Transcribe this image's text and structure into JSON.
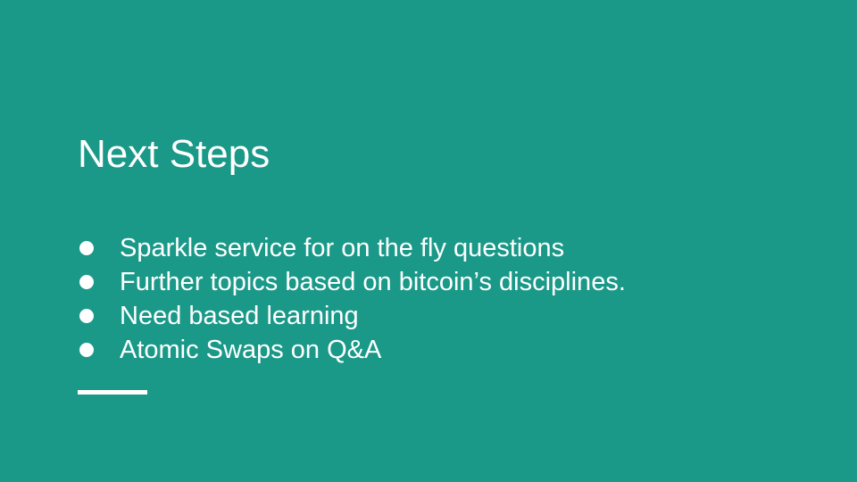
{
  "slide": {
    "title": "Next Steps",
    "bullets": [
      "Sparkle service for on the fly questions",
      "Further topics based on bitcoin’s disciplines.",
      "Need based learning",
      "Atomic Swaps on Q&A"
    ],
    "colors": {
      "background": "#1a9988",
      "text": "#ffffff"
    }
  }
}
